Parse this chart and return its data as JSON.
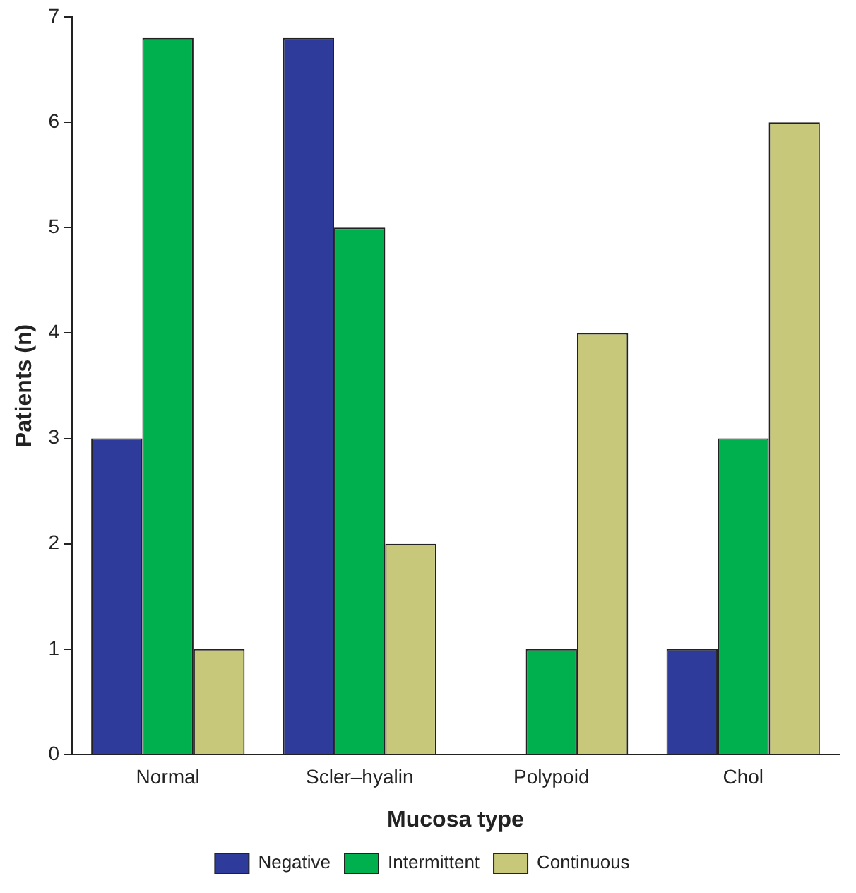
{
  "chart_data": {
    "type": "bar",
    "xlabel": "Mucosa type",
    "ylabel": "Patients (n)",
    "categories": [
      "Normal",
      "Scler–hyalin",
      "Polypoid",
      "Chol"
    ],
    "series": [
      {
        "name": "Negative",
        "color": "#2e3b9a",
        "values": [
          3,
          6.8,
          0,
          1
        ]
      },
      {
        "name": "Intermittent",
        "color": "#00b04f",
        "values": [
          6.8,
          5,
          1,
          3
        ]
      },
      {
        "name": "Continuous",
        "color": "#c8c87a",
        "values": [
          1,
          2,
          4,
          6
        ]
      }
    ],
    "ylim": [
      0,
      7
    ],
    "yticks": [
      0,
      1,
      2,
      3,
      4,
      5,
      6,
      7
    ],
    "grid": false,
    "legend": "bottom"
  }
}
